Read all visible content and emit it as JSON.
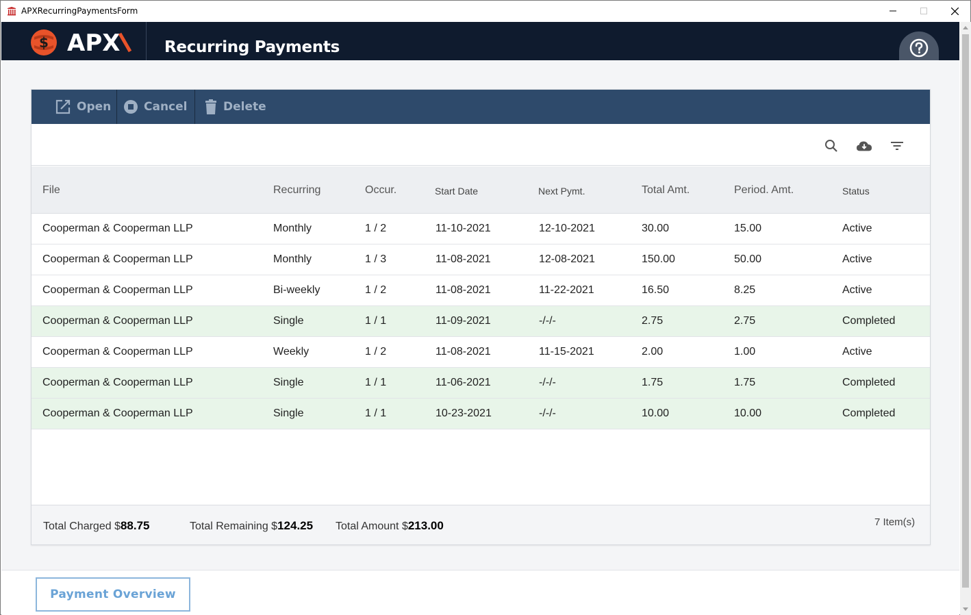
{
  "window": {
    "title": "APXRecurringPaymentsForm",
    "min": "—",
    "max": "☐",
    "close": "✕"
  },
  "header": {
    "logo_text": "APX",
    "title": "Recurring Payments",
    "help_icon": "help-circle-icon"
  },
  "toolbar": {
    "open_label": "Open",
    "cancel_label": "Cancel",
    "delete_label": "Delete"
  },
  "columns": {
    "file": "File",
    "recurring": "Recurring",
    "occur": "Occur.",
    "start": "Start Date",
    "next": "Next Pymt.",
    "total": "Total Amt.",
    "period": "Period. Amt.",
    "status": "Status"
  },
  "rows": [
    {
      "file": "Cooperman & Cooperman LLP",
      "recurring": "Monthly",
      "occur": "1 / 2",
      "start": "11-10-2021",
      "next": "12-10-2021",
      "total": "30.00",
      "period": "15.00",
      "status": "Active"
    },
    {
      "file": "Cooperman & Cooperman LLP",
      "recurring": "Monthly",
      "occur": "1 / 3",
      "start": "11-08-2021",
      "next": "12-08-2021",
      "total": "150.00",
      "period": "50.00",
      "status": "Active"
    },
    {
      "file": "Cooperman & Cooperman LLP",
      "recurring": "Bi-weekly",
      "occur": "1 / 2",
      "start": "11-08-2021",
      "next": "11-22-2021",
      "total": "16.50",
      "period": "8.25",
      "status": "Active"
    },
    {
      "file": "Cooperman & Cooperman LLP",
      "recurring": "Single",
      "occur": "1 / 1",
      "start": "11-09-2021",
      "next": "-/-/-",
      "total": "2.75",
      "period": "2.75",
      "status": "Completed"
    },
    {
      "file": "Cooperman & Cooperman LLP",
      "recurring": "Weekly",
      "occur": "1 / 2",
      "start": "11-08-2021",
      "next": "11-15-2021",
      "total": "2.00",
      "period": "1.00",
      "status": "Active"
    },
    {
      "file": "Cooperman & Cooperman LLP",
      "recurring": "Single",
      "occur": "1 / 1",
      "start": "11-06-2021",
      "next": "-/-/-",
      "total": "1.75",
      "period": "1.75",
      "status": "Completed"
    },
    {
      "file": "Cooperman & Cooperman LLP",
      "recurring": "Single",
      "occur": "1 / 1",
      "start": "10-23-2021",
      "next": "-/-/-",
      "total": "10.00",
      "period": "10.00",
      "status": "Completed"
    }
  ],
  "totals": {
    "charged_label": "Total Charged $",
    "charged_value": "88.75",
    "remaining_label": "Total Remaining $",
    "remaining_value": "124.25",
    "amount_label": "Total Amount $",
    "amount_value": "213.00",
    "items": "7 Item(s)"
  },
  "bottom": {
    "overview_label": "Payment Overview"
  },
  "colors": {
    "header_bg": "#0f1b2e",
    "toolbar_bg": "#2e4a6b",
    "completed_row": "#e8f5e9",
    "accent": "#6aa3d6"
  }
}
